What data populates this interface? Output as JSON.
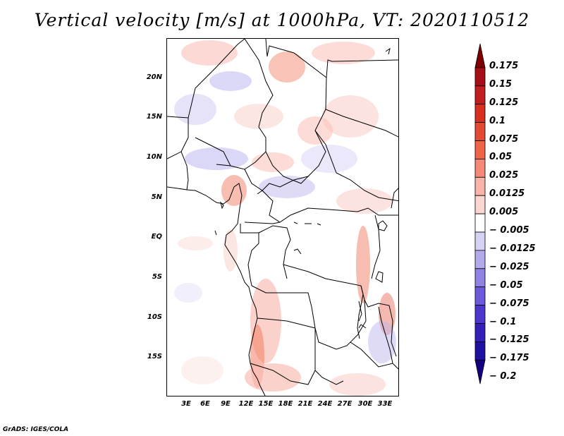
{
  "title": "Vertical velocity [m/s] at 1000hPa, VT: 2020110512",
  "credit": "GrADS: IGES/COLA",
  "map": {
    "lat_labels": [
      "20N",
      "15N",
      "10N",
      "5N",
      "EQ",
      "5S",
      "10S",
      "15S"
    ],
    "lon_labels": [
      "3E",
      "6E",
      "9E",
      "12E",
      "15E",
      "18E",
      "21E",
      "24E",
      "27E",
      "30E",
      "33E"
    ]
  },
  "colorbar": {
    "labels": [
      "0.175",
      "0.15",
      "0.125",
      "0.1",
      "0.075",
      "0.05",
      "0.025",
      "0.0125",
      "0.005",
      "− 0.005",
      "− 0.0125",
      "− 0.025",
      "− 0.05",
      "− 0.075",
      "− 0.1",
      "− 0.125",
      "− 0.175",
      "− 0.2"
    ],
    "colors": [
      "#7f0000",
      "#a50f15",
      "#c11e20",
      "#d7301f",
      "#e34a33",
      "#ef6548",
      "#f4897a",
      "#f9b4aa",
      "#fbd6d0",
      "#ffffff",
      "#d6d2f5",
      "#b3aaec",
      "#8f82e3",
      "#6b5ad9",
      "#4b37cc",
      "#3320b8",
      "#1e10a0",
      "#10007f"
    ]
  }
}
